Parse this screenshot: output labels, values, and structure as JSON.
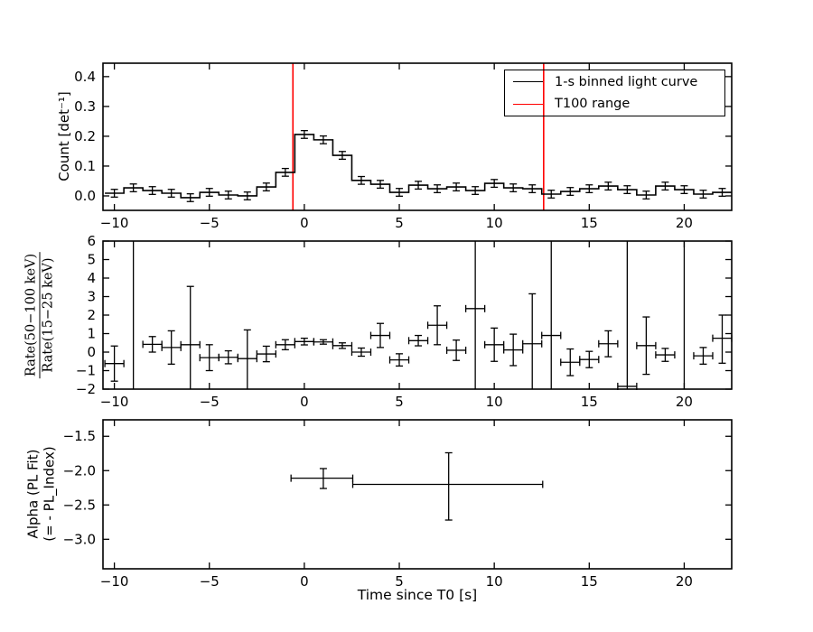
{
  "figure": {
    "background": "#ffffff",
    "axis_color": "#000000"
  },
  "axes": {
    "xlabel": "Time since T0 [s]",
    "xlim": [
      -10.6,
      22.5
    ],
    "x_tick_values": [
      -10,
      -5,
      0,
      5,
      10,
      15,
      20
    ],
    "x_tick_labels": [
      "−10",
      "−5",
      "0",
      "5",
      "10",
      "15",
      "20"
    ]
  },
  "chart_data": [
    {
      "id": "light-curve",
      "type": "step-histogram-errorbar",
      "ylabel": "Count [det⁻¹]",
      "ylim": [
        -0.0485,
        0.445
      ],
      "y_tick_values": [
        0.0,
        0.1,
        0.2,
        0.3,
        0.4
      ],
      "y_tick_labels": [
        "0.0",
        "0.1",
        "0.2",
        "0.3",
        "0.4"
      ],
      "line_color": "#000000",
      "t100_color": "#ff0000",
      "t100_range": [
        -0.6,
        12.6
      ],
      "bin_width": 1,
      "yerr": 0.013,
      "x": [
        -10,
        -9,
        -8,
        -7,
        -6,
        -5,
        -4,
        -3,
        -2,
        -1,
        0,
        1,
        2,
        3,
        4,
        5,
        6,
        7,
        8,
        9,
        10,
        11,
        12,
        13,
        14,
        15,
        16,
        17,
        18,
        19,
        20,
        21,
        22
      ],
      "y": [
        0.009,
        0.027,
        0.018,
        0.009,
        -0.006,
        0.012,
        0.003,
        0.0,
        0.03,
        0.079,
        0.206,
        0.188,
        0.136,
        0.052,
        0.039,
        0.012,
        0.036,
        0.024,
        0.03,
        0.018,
        0.042,
        0.027,
        0.024,
        0.006,
        0.015,
        0.024,
        0.033,
        0.021,
        0.003,
        0.033,
        0.021,
        0.006,
        0.012
      ],
      "legend": {
        "entries": [
          {
            "label": "1-s binned light curve",
            "color": "#000000"
          },
          {
            "label": "T100 range",
            "color": "#ff0000"
          }
        ]
      }
    },
    {
      "id": "hardness-ratio",
      "type": "errorbar-scatter",
      "ylabel_numerator": "Rate(50−100 keV)",
      "ylabel_denominator": "Rate(15−25 keV)",
      "ylim": [
        -2,
        6
      ],
      "y_tick_values": [
        -2,
        -1,
        0,
        1,
        2,
        3,
        4,
        5,
        6
      ],
      "y_tick_labels": [
        "−2",
        "−1",
        "0",
        "1",
        "2",
        "3",
        "4",
        "5",
        "6"
      ],
      "xerr": 0.5,
      "points": [
        {
          "x": -10,
          "y": -0.62,
          "err_lo": 0.95,
          "err_hi": 0.95
        },
        {
          "x": -9,
          "y": null,
          "full_range": true
        },
        {
          "x": -8,
          "y": 0.42,
          "err_lo": 0.42,
          "err_hi": 0.42
        },
        {
          "x": -7,
          "y": 0.25,
          "err_lo": 0.9,
          "err_hi": 0.9
        },
        {
          "x": -6,
          "y": 0.4,
          "err_lo": 2.6,
          "err_hi": 3.15
        },
        {
          "x": -5,
          "y": -0.3,
          "err_lo": 0.7,
          "err_hi": 0.7
        },
        {
          "x": -4,
          "y": -0.28,
          "err_lo": 0.35,
          "err_hi": 0.35
        },
        {
          "x": -3,
          "y": -0.35,
          "err_lo": 2.0,
          "err_hi": 1.55
        },
        {
          "x": -2,
          "y": -0.1,
          "err_lo": 0.42,
          "err_hi": 0.42
        },
        {
          "x": -1,
          "y": 0.4,
          "err_lo": 0.27,
          "err_hi": 0.27
        },
        {
          "x": 0,
          "y": 0.57,
          "err_lo": 0.18,
          "err_hi": 0.18
        },
        {
          "x": 1,
          "y": 0.55,
          "err_lo": 0.12,
          "err_hi": 0.12
        },
        {
          "x": 2,
          "y": 0.35,
          "err_lo": 0.15,
          "err_hi": 0.15
        },
        {
          "x": 3,
          "y": 0.0,
          "err_lo": 0.22,
          "err_hi": 0.22
        },
        {
          "x": 4,
          "y": 0.9,
          "err_lo": 0.65,
          "err_hi": 0.65
        },
        {
          "x": 5,
          "y": -0.42,
          "err_lo": 0.33,
          "err_hi": 0.33
        },
        {
          "x": 6,
          "y": 0.62,
          "err_lo": 0.28,
          "err_hi": 0.28
        },
        {
          "x": 7,
          "y": 1.45,
          "err_lo": 1.05,
          "err_hi": 1.05
        },
        {
          "x": 8,
          "y": 0.1,
          "err_lo": 0.55,
          "err_hi": 0.55
        },
        {
          "x": 9,
          "y": 2.35,
          "full_range": true
        },
        {
          "x": 10,
          "y": 0.4,
          "err_lo": 0.9,
          "err_hi": 0.9
        },
        {
          "x": 11,
          "y": 0.12,
          "err_lo": 0.85,
          "err_hi": 0.85
        },
        {
          "x": 12,
          "y": 0.45,
          "err_lo": 2.6,
          "err_hi": 2.7
        },
        {
          "x": 13,
          "y": 0.9,
          "full_range": true
        },
        {
          "x": 14,
          "y": -0.55,
          "err_lo": 0.72,
          "err_hi": 0.72
        },
        {
          "x": 15,
          "y": -0.4,
          "err_lo": 0.44,
          "err_hi": 0.44
        },
        {
          "x": 16,
          "y": 0.45,
          "err_lo": 0.7,
          "err_hi": 0.7
        },
        {
          "x": 17,
          "y": -1.85,
          "full_range": true
        },
        {
          "x": 18,
          "y": 0.35,
          "err_lo": 1.55,
          "err_hi": 1.55
        },
        {
          "x": 19,
          "y": -0.15,
          "err_lo": 0.35,
          "err_hi": 0.35
        },
        {
          "x": 20,
          "y": null,
          "full_range": true
        },
        {
          "x": 21,
          "y": -0.2,
          "err_lo": 0.45,
          "err_hi": 0.45
        },
        {
          "x": 22,
          "y": 0.75,
          "err_lo": 1.35,
          "err_hi": 1.25
        }
      ]
    },
    {
      "id": "alpha-pl-fit",
      "type": "errorbar-scatter",
      "ylabel_line1": "Alpha (PL Fit)",
      "ylabel_line2": "(= - PL_Index)",
      "ylim": [
        -3.43,
        -1.26
      ],
      "y_tick_values": [
        -1.5,
        -2.0,
        -2.5,
        -3.0
      ],
      "y_tick_labels": [
        "−1.5",
        "−2.0",
        "−2.5",
        "−3.0"
      ],
      "points": [
        {
          "x": 1.0,
          "x_lo": -0.7,
          "x_hi": 2.55,
          "y": -2.11,
          "err_lo": 0.15,
          "err_hi": 0.14
        },
        {
          "x": 7.6,
          "x_lo": 2.55,
          "x_hi": 12.55,
          "y": -2.2,
          "err_lo": 0.52,
          "err_hi": 0.46
        }
      ]
    }
  ]
}
